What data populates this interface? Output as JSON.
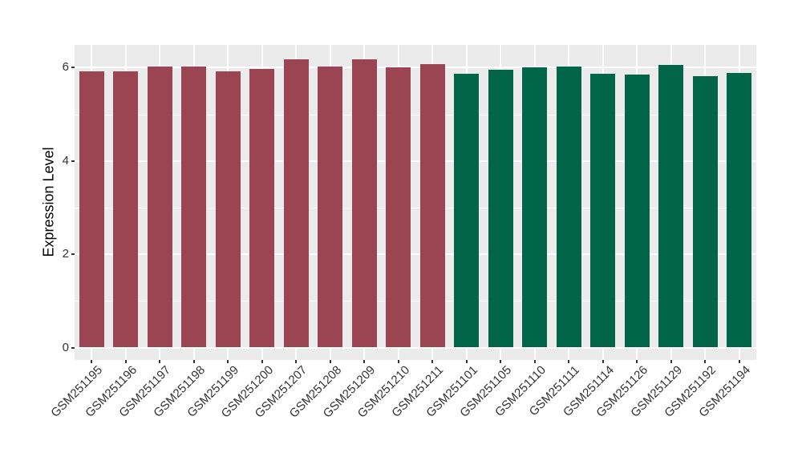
{
  "chart_data": {
    "type": "bar",
    "title": "",
    "xlabel": "",
    "ylabel": "Expression Level",
    "legend_position": "none",
    "grid": "white gridlines on gray panel",
    "ylim": [
      0,
      6.5
    ],
    "yticks": [
      0,
      2,
      4,
      6
    ],
    "minor_yticks": [
      1,
      3,
      5
    ],
    "x_tick_rotation_deg": 45,
    "categories": [
      "GSM251195",
      "GSM251196",
      "GSM251197",
      "GSM251198",
      "GSM251199",
      "GSM251200",
      "GSM251207",
      "GSM251208",
      "GSM251209",
      "GSM251210",
      "GSM251211",
      "GSM251101",
      "GSM251105",
      "GSM251110",
      "GSM251111",
      "GSM251114",
      "GSM251126",
      "GSM251129",
      "GSM251192",
      "GSM251194"
    ],
    "values": [
      5.92,
      5.92,
      6.02,
      6.02,
      5.92,
      5.97,
      6.17,
      6.02,
      6.17,
      6.0,
      6.07,
      5.86,
      5.96,
      6.0,
      6.03,
      5.87,
      5.85,
      6.05,
      5.81,
      5.89
    ],
    "bar_colors": [
      "#9B4452",
      "#9B4452",
      "#9B4452",
      "#9B4452",
      "#9B4452",
      "#9B4452",
      "#9B4452",
      "#9B4452",
      "#9B4452",
      "#9B4452",
      "#9B4452",
      "#006647",
      "#006647",
      "#006647",
      "#006647",
      "#006647",
      "#006647",
      "#006647",
      "#006647",
      "#006647"
    ]
  },
  "style": {
    "figure_bg": "#FFFFFF",
    "panel_bg": "#EBEBEB",
    "grid_color": "#FFFFFF",
    "red_group_color": "#9B4452",
    "green_group_color": "#006647",
    "axis_text_color": "#333333",
    "axis_title_color": "#000000"
  }
}
